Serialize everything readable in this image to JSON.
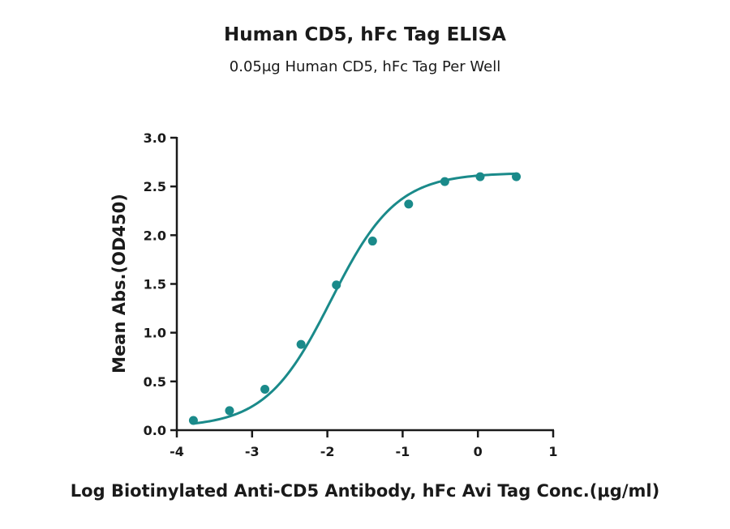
{
  "chart_data": {
    "type": "scatter",
    "title": "Human CD5, hFc Tag ELISA",
    "subtitle": "0.05μg Human CD5, hFc Tag Per Well",
    "xlabel": "Log Biotinylated Anti-CD5 Antibody, hFc Avi Tag Conc.(μg/ml)",
    "ylabel": "Mean Abs.(OD450)",
    "xlim": [
      -4,
      1
    ],
    "ylim": [
      0,
      3
    ],
    "xticks": [
      "-4",
      "-3",
      "-2",
      "-1",
      "0",
      "1"
    ],
    "yticks": [
      "0.0",
      "0.5",
      "1.0",
      "1.5",
      "2.0",
      "2.5",
      "3.0"
    ],
    "grid": false,
    "series": [
      {
        "color": "#1a8a8a",
        "x": [
          -3.78,
          -3.3,
          -2.83,
          -2.35,
          -1.88,
          -1.4,
          -0.92,
          -0.44,
          0.03,
          0.51
        ],
        "y": [
          0.1,
          0.2,
          0.42,
          0.88,
          1.49,
          1.94,
          2.32,
          2.55,
          2.6,
          2.6
        ]
      }
    ],
    "fit_curve": {
      "type": "4PL",
      "bottom": 0.03,
      "top": 2.64,
      "logEC50": -1.95,
      "hill": 1.0
    }
  }
}
